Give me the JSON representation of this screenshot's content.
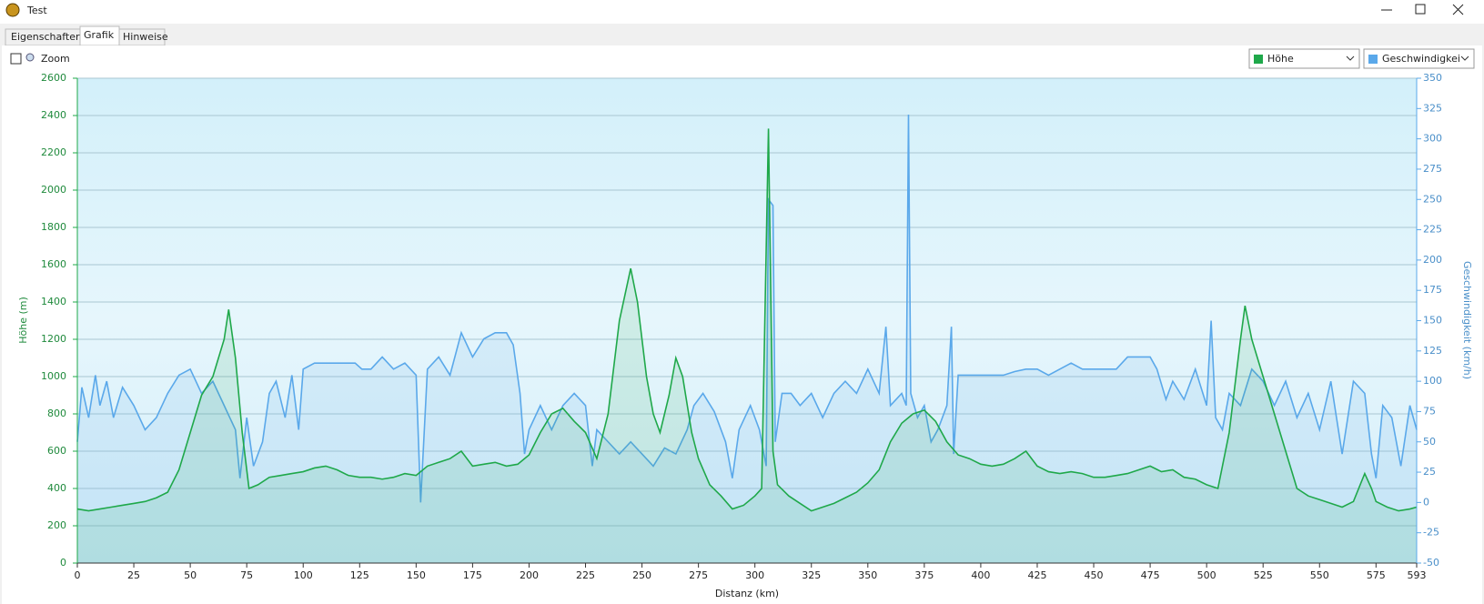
{
  "window": {
    "title": "Test"
  },
  "tabs": [
    "Eigenschaften",
    "Grafik",
    "Hinweise"
  ],
  "toolbar": {
    "zoom": "Zoom"
  },
  "chart_data": {
    "type": "line",
    "xlabel": "Distanz  (km)",
    "ylabel": "Höhe (m)",
    "y2label": "Geschwindigkeit (km/h)",
    "xlim": [
      0,
      593
    ],
    "xticks": [
      0,
      25,
      50,
      75,
      100,
      125,
      150,
      175,
      200,
      225,
      250,
      275,
      300,
      325,
      350,
      375,
      400,
      425,
      450,
      475,
      500,
      525,
      550,
      575,
      593
    ],
    "ylim": [
      0,
      2600
    ],
    "yticks": [
      0,
      200,
      400,
      600,
      800,
      1000,
      1200,
      1400,
      1600,
      1800,
      2000,
      2200,
      2400,
      2600
    ],
    "y2lim": [
      -50,
      350
    ],
    "y2ticks": [
      -50,
      -25,
      0,
      25,
      50,
      75,
      100,
      125,
      150,
      175,
      200,
      225,
      250,
      275,
      300,
      325,
      350
    ],
    "grid": true,
    "series": [
      {
        "name": "Höhe",
        "color": "#1fa84a",
        "x": [
          0,
          5,
          10,
          15,
          20,
          25,
          30,
          35,
          40,
          45,
          50,
          55,
          60,
          65,
          67,
          70,
          73,
          76,
          80,
          85,
          90,
          95,
          100,
          105,
          110,
          115,
          120,
          125,
          130,
          135,
          140,
          145,
          150,
          155,
          160,
          165,
          170,
          175,
          180,
          185,
          190,
          195,
          200,
          205,
          210,
          215,
          220,
          225,
          230,
          235,
          240,
          245,
          248,
          252,
          255,
          258,
          262,
          265,
          268,
          272,
          275,
          280,
          285,
          290,
          295,
          300,
          303,
          306,
          308,
          310,
          315,
          320,
          325,
          330,
          335,
          340,
          345,
          350,
          355,
          360,
          365,
          370,
          375,
          380,
          385,
          390,
          395,
          400,
          405,
          410,
          415,
          420,
          425,
          430,
          435,
          440,
          445,
          450,
          455,
          460,
          465,
          470,
          475,
          480,
          485,
          490,
          495,
          500,
          505,
          510,
          515,
          517,
          520,
          525,
          530,
          535,
          540,
          545,
          550,
          555,
          560,
          565,
          570,
          573,
          575,
          580,
          585,
          590,
          593
        ],
        "values": [
          290,
          280,
          290,
          300,
          310,
          320,
          330,
          350,
          380,
          500,
          700,
          900,
          1000,
          1200,
          1360,
          1100,
          700,
          400,
          420,
          460,
          470,
          480,
          490,
          510,
          520,
          500,
          470,
          460,
          460,
          450,
          460,
          480,
          470,
          520,
          540,
          560,
          600,
          520,
          530,
          540,
          520,
          530,
          580,
          700,
          800,
          830,
          760,
          700,
          560,
          800,
          1300,
          1580,
          1400,
          1000,
          800,
          700,
          900,
          1100,
          1000,
          700,
          560,
          420,
          360,
          290,
          310,
          360,
          400,
          2330,
          600,
          420,
          360,
          320,
          280,
          300,
          320,
          350,
          380,
          430,
          500,
          650,
          750,
          800,
          820,
          760,
          650,
          580,
          560,
          530,
          520,
          530,
          560,
          600,
          520,
          490,
          480,
          490,
          480,
          460,
          460,
          470,
          480,
          500,
          520,
          490,
          500,
          460,
          450,
          420,
          400,
          700,
          1200,
          1380,
          1200,
          1000,
          800,
          600,
          400,
          360,
          340,
          320,
          300,
          330,
          480,
          400,
          330,
          300,
          280,
          290,
          300
        ]
      },
      {
        "name": "Geschwindigkei",
        "color": "#5aa8ea",
        "axis": "y2",
        "x": [
          0,
          2,
          5,
          8,
          10,
          13,
          16,
          20,
          25,
          30,
          35,
          40,
          45,
          50,
          55,
          60,
          65,
          70,
          72,
          75,
          78,
          82,
          85,
          88,
          92,
          95,
          98,
          100,
          105,
          110,
          115,
          120,
          123,
          126,
          130,
          135,
          140,
          145,
          150,
          152,
          155,
          160,
          165,
          170,
          175,
          180,
          185,
          190,
          193,
          196,
          198,
          200,
          205,
          210,
          215,
          220,
          225,
          228,
          230,
          235,
          240,
          245,
          250,
          255,
          260,
          265,
          270,
          273,
          277,
          282,
          287,
          290,
          293,
          298,
          302,
          305,
          306,
          308,
          309,
          312,
          316,
          320,
          325,
          330,
          335,
          340,
          345,
          350,
          355,
          358,
          360,
          365,
          367,
          368,
          369,
          372,
          375,
          378,
          381,
          385,
          387,
          388,
          390,
          395,
          400,
          405,
          410,
          415,
          420,
          425,
          430,
          435,
          440,
          445,
          450,
          455,
          460,
          465,
          470,
          475,
          478,
          482,
          485,
          490,
          495,
          500,
          502,
          504,
          507,
          510,
          515,
          520,
          525,
          530,
          535,
          540,
          545,
          550,
          555,
          560,
          565,
          570,
          573,
          575,
          578,
          582,
          586,
          590,
          593
        ],
        "values": [
          50,
          95,
          70,
          105,
          80,
          100,
          70,
          95,
          80,
          60,
          70,
          90,
          105,
          110,
          90,
          100,
          80,
          60,
          20,
          70,
          30,
          50,
          90,
          100,
          70,
          105,
          60,
          110,
          115,
          115,
          115,
          115,
          115,
          110,
          110,
          120,
          110,
          115,
          105,
          0,
          110,
          120,
          105,
          140,
          120,
          135,
          140,
          140,
          130,
          90,
          40,
          60,
          80,
          60,
          80,
          90,
          80,
          30,
          60,
          50,
          40,
          50,
          40,
          30,
          45,
          40,
          60,
          80,
          90,
          75,
          50,
          20,
          60,
          80,
          60,
          30,
          250,
          245,
          50,
          90,
          90,
          80,
          90,
          70,
          90,
          100,
          90,
          110,
          90,
          145,
          80,
          90,
          80,
          320,
          90,
          70,
          80,
          50,
          60,
          80,
          145,
          40,
          105,
          105,
          105,
          105,
          105,
          108,
          110,
          110,
          105,
          110,
          115,
          110,
          110,
          110,
          110,
          120,
          120,
          120,
          110,
          85,
          100,
          85,
          110,
          80,
          150,
          70,
          60,
          90,
          80,
          110,
          100,
          80,
          100,
          70,
          90,
          60,
          100,
          40,
          100,
          90,
          40,
          20,
          80,
          70,
          30,
          80,
          60
        ]
      }
    ]
  }
}
